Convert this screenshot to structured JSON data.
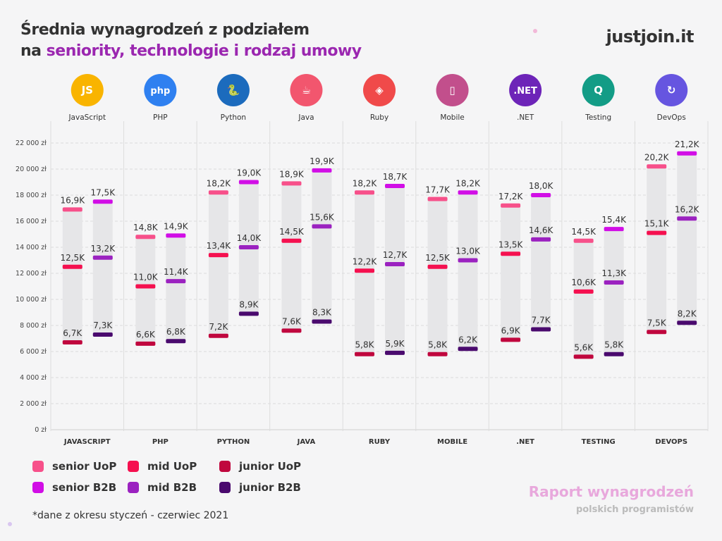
{
  "title": {
    "line1": "Średnia wynagrodzeń z podziałem",
    "line2_prefix": "na ",
    "line2_accent": "seniority, technologie i rodzaj umowy"
  },
  "logo": "justjoin.it",
  "footer": {
    "report_title": "Raport wynagrodzeń",
    "report_subtitle": "polskich programistów",
    "note": "*dane z okresu styczeń - czerwiec 2021"
  },
  "colors": {
    "senior_uop": "#f7508a",
    "mid_uop": "#f5104f",
    "junior_uop": "#c0073e",
    "senior_b2b": "#d10ee6",
    "mid_b2b": "#9b22c0",
    "junior_b2b": "#4a0a6e",
    "bar_bg": "#e6e6e8"
  },
  "chart_data": {
    "type": "range-bar",
    "ylim": [
      0,
      22000
    ],
    "yticks": [
      0,
      2000,
      4000,
      6000,
      8000,
      10000,
      12000,
      14000,
      16000,
      18000,
      20000,
      22000
    ],
    "ytick_labels": [
      "0 zł",
      "2 000 zł",
      "4 000 zł",
      "6 000 zł",
      "8 000 zł",
      "10 000 zł",
      "12 000 zł",
      "14 000 zł",
      "16 000 zł",
      "18 000 zł",
      "20 000 zł",
      "22 000 zł"
    ],
    "grid": true,
    "legend_position": "bottom-left",
    "categories": [
      "JAVASCRIPT",
      "PHP",
      "PYTHON",
      "JAVA",
      "RUBY",
      "MOBILE",
      ".NET",
      "TESTING",
      "DEVOPS"
    ],
    "tech_labels": [
      "JavaScript",
      "PHP",
      "Python",
      "Java",
      "Ruby",
      "Mobile",
      ".NET",
      "Testing",
      "DevOps"
    ],
    "icons": [
      {
        "name": "javascript-icon",
        "glyph": "JS",
        "color": "#f9b400"
      },
      {
        "name": "php-icon",
        "glyph": "php",
        "color": "#2f80f0"
      },
      {
        "name": "python-icon",
        "glyph": "🐍",
        "color": "#1c6bbd"
      },
      {
        "name": "java-icon",
        "glyph": "☕",
        "color": "#f2566e"
      },
      {
        "name": "ruby-icon",
        "glyph": "◈",
        "color": "#f04a4a"
      },
      {
        "name": "mobile-icon",
        "glyph": "▯",
        "color": "#c24f8c"
      },
      {
        "name": "dotnet-icon",
        "glyph": ".NET",
        "color": "#6d24b8"
      },
      {
        "name": "testing-icon",
        "glyph": "Q",
        "color": "#139c86"
      },
      {
        "name": "devops-icon",
        "glyph": "↻",
        "color": "#6655e0"
      }
    ],
    "series": [
      {
        "name": "senior UoP",
        "key": "senior_uop",
        "group": "UoP",
        "values": [
          16900,
          14800,
          18200,
          18900,
          18200,
          17700,
          17200,
          14500,
          20200
        ],
        "labels": [
          "16,9K",
          "14,8K",
          "18,2K",
          "18,9K",
          "18,2K",
          "17,7K",
          "17,2K",
          "14,5K",
          "20,2K"
        ]
      },
      {
        "name": "mid UoP",
        "key": "mid_uop",
        "group": "UoP",
        "values": [
          12500,
          11000,
          13400,
          14500,
          12200,
          12500,
          13500,
          10600,
          15100
        ],
        "labels": [
          "12,5K",
          "11,0K",
          "13,4K",
          "14,5K",
          "12,2K",
          "12,5K",
          "13,5K",
          "10,6K",
          "15,1K"
        ]
      },
      {
        "name": "junior UoP",
        "key": "junior_uop",
        "group": "UoP",
        "values": [
          6700,
          6600,
          7200,
          7600,
          5800,
          5800,
          6900,
          5600,
          7500
        ],
        "labels": [
          "6,7K",
          "6,6K",
          "7,2K",
          "7,6K",
          "5,8K",
          "5,8K",
          "6,9K",
          "5,6K",
          "7,5K"
        ]
      },
      {
        "name": "senior B2B",
        "key": "senior_b2b",
        "group": "B2B",
        "values": [
          17500,
          14900,
          19000,
          19900,
          18700,
          18200,
          18000,
          15400,
          21200
        ],
        "labels": [
          "17,5K",
          "14,9K",
          "19,0K",
          "19,9K",
          "18,7K",
          "18,2K",
          "18,0K",
          "15,4K",
          "21,2K"
        ]
      },
      {
        "name": "mid B2B",
        "key": "mid_b2b",
        "group": "B2B",
        "values": [
          13200,
          11400,
          14000,
          15600,
          12700,
          13000,
          14600,
          11300,
          16200
        ],
        "labels": [
          "13,2K",
          "11,4K",
          "14,0K",
          "15,6K",
          "12,7K",
          "13,0K",
          "14,6K",
          "11,3K",
          "16,2K"
        ]
      },
      {
        "name": "junior B2B",
        "key": "junior_b2b",
        "group": "B2B",
        "values": [
          7300,
          6800,
          8900,
          8300,
          5900,
          6200,
          7700,
          5800,
          8200
        ],
        "labels": [
          "7,3K",
          "6,8K",
          "8,9K",
          "8,3K",
          "5,9K",
          "6,2K",
          "7,7K",
          "5,8K",
          "8,2K"
        ]
      }
    ]
  }
}
